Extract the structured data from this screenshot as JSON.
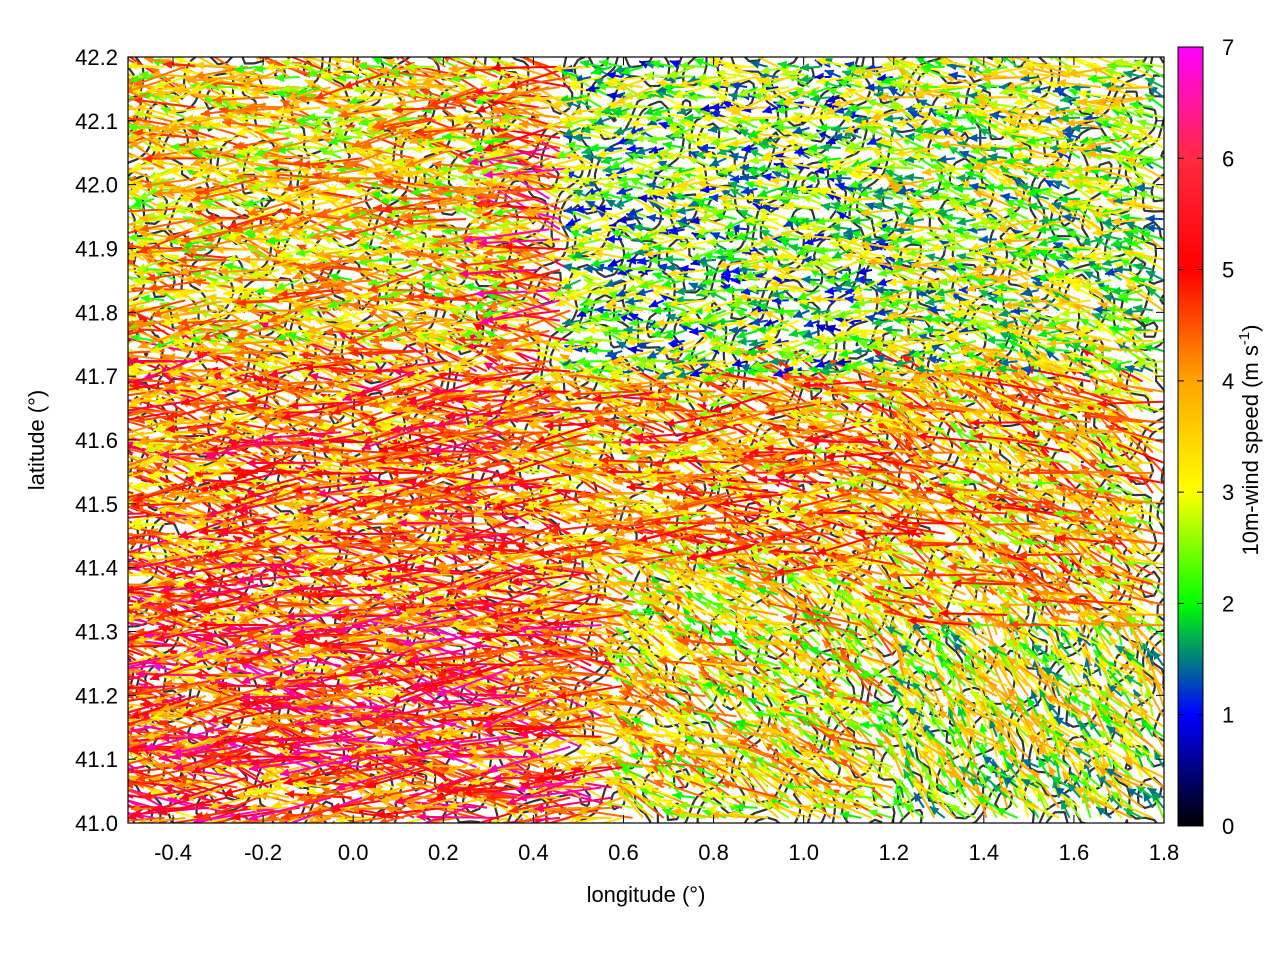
{
  "chart_data": {
    "type": "vector-field",
    "title": "",
    "xlabel": "longitude (°)",
    "ylabel": "latitude (°)",
    "xlim": [
      -0.5,
      1.8
    ],
    "ylim": [
      41.0,
      42.2
    ],
    "xticks": [
      "-0.4",
      "-0.2",
      "0.0",
      "0.2",
      "0.4",
      "0.6",
      "0.8",
      "1.0",
      "1.2",
      "1.4",
      "1.6",
      "1.8"
    ],
    "xtick_values": [
      -0.4,
      -0.2,
      0.0,
      0.2,
      0.4,
      0.6,
      0.8,
      1.0,
      1.2,
      1.4,
      1.6,
      1.8
    ],
    "yticks": [
      "41.0",
      "41.1",
      "41.2",
      "41.3",
      "41.4",
      "41.5",
      "41.6",
      "41.7",
      "41.8",
      "41.9",
      "42.0",
      "42.1",
      "42.2"
    ],
    "ytick_values": [
      41.0,
      41.1,
      41.2,
      41.3,
      41.4,
      41.5,
      41.6,
      41.7,
      41.8,
      41.9,
      42.0,
      42.1,
      42.2
    ],
    "grid": true,
    "colorbar": {
      "label_main": "10m-wind speed (m s",
      "label_sup": "-1",
      "label_end": ")",
      "range": [
        0,
        7
      ],
      "ticks": [
        "0",
        "1",
        "2",
        "3",
        "4",
        "5",
        "6",
        "7"
      ],
      "tick_values": [
        0,
        1,
        2,
        3,
        4,
        5,
        6,
        7
      ],
      "palette": [
        "#000000",
        "#0000ff",
        "#00ff00",
        "#ffff00",
        "#ffa500",
        "#ff0000",
        "#ff00ff"
      ]
    },
    "contour_color": "#333333",
    "wind_regions": [
      {
        "lon": [
          -0.5,
          0.6
        ],
        "lat": [
          41.0,
          41.35
        ],
        "u": -5.0,
        "v": 0.6,
        "speed": 5.2
      },
      {
        "lon": [
          -0.5,
          0.5
        ],
        "lat": [
          41.35,
          41.75
        ],
        "u": -4.5,
        "v": 0.5,
        "speed": 4.8
      },
      {
        "lon": [
          -0.5,
          0.4
        ],
        "lat": [
          41.75,
          42.2
        ],
        "u": -3.8,
        "v": 0.4,
        "speed": 4.0
      },
      {
        "lon": [
          0.4,
          1.2
        ],
        "lat": [
          41.4,
          41.7
        ],
        "u": -4.0,
        "v": 0.8,
        "speed": 4.5
      },
      {
        "lon": [
          0.5,
          1.2
        ],
        "lat": [
          41.7,
          42.2
        ],
        "u": -2.0,
        "v": 0.1,
        "speed": 2.5
      },
      {
        "lon": [
          0.6,
          1.2
        ],
        "lat": [
          41.0,
          41.4
        ],
        "u": -2.5,
        "v": 1.5,
        "speed": 3.8
      },
      {
        "lon": [
          1.2,
          1.8
        ],
        "lat": [
          41.0,
          41.3
        ],
        "u": -0.8,
        "v": 1.0,
        "speed": 3.2
      },
      {
        "lon": [
          1.2,
          1.8
        ],
        "lat": [
          41.3,
          41.7
        ],
        "u": -2.8,
        "v": 1.4,
        "speed": 4.3
      },
      {
        "lon": [
          1.2,
          1.8
        ],
        "lat": [
          41.7,
          42.2
        ],
        "u": -2.2,
        "v": 0.5,
        "speed": 3.0
      }
    ]
  }
}
